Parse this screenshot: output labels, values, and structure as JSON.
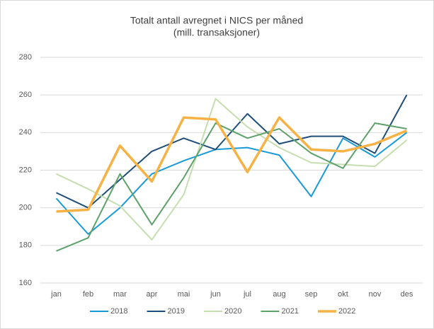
{
  "chart_data": {
    "type": "line",
    "title": "Totalt antall avregnet i NICS per måned",
    "subtitle": "(mill. transaksjoner)",
    "categories": [
      "jan",
      "feb",
      "mar",
      "apr",
      "mai",
      "jun",
      "jul",
      "aug",
      "sep",
      "okt",
      "nov",
      "des"
    ],
    "series": [
      {
        "name": "2018",
        "color": "#1a9ad6",
        "values": [
          205,
          186,
          200,
          218,
          225,
          231,
          232,
          228,
          206,
          237,
          227,
          240
        ]
      },
      {
        "name": "2019",
        "color": "#1f4e79",
        "values": [
          208,
          200,
          215,
          230,
          237,
          231,
          250,
          234,
          238,
          238,
          229,
          260
        ]
      },
      {
        "name": "2020",
        "color": "#c5deb0",
        "values": [
          218,
          210,
          201,
          183,
          207,
          258,
          243,
          232,
          224,
          223,
          222,
          236
        ]
      },
      {
        "name": "2021",
        "color": "#5fa16b",
        "values": [
          177,
          184,
          218,
          191,
          216,
          245,
          237,
          242,
          229,
          221,
          245,
          242
        ]
      },
      {
        "name": "2022",
        "color": "#f6b245",
        "values": [
          198,
          199,
          233,
          214,
          248,
          247,
          219,
          248,
          231,
          230,
          234,
          241
        ]
      }
    ],
    "ylim": [
      160,
      280
    ],
    "yticks": [
      160,
      180,
      200,
      220,
      240,
      260,
      280
    ],
    "grid": true,
    "legend": "bottom"
  }
}
